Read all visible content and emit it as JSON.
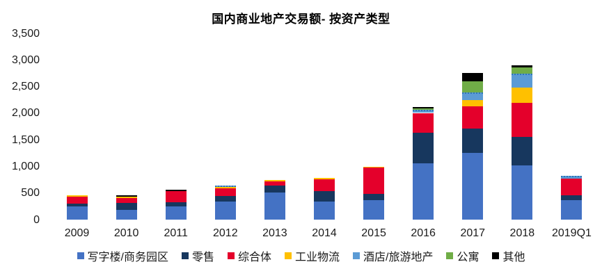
{
  "title": "国内商业地产交易额- 按资产类型",
  "chart_data": {
    "type": "bar",
    "stacked": true,
    "title": "国内商业地产交易额- 按资产类型",
    "grid": false,
    "legend_position": "bottom",
    "xlabel": "",
    "ylabel": "",
    "ylim": [
      0,
      3500
    ],
    "categories": [
      "2009",
      "2010",
      "2011",
      "2012",
      "2013",
      "2014",
      "2015",
      "2016",
      "2017",
      "2018",
      "2019Q1"
    ],
    "series": [
      {
        "key": "office-business-park",
        "name": "写字楼/商务园区",
        "color": "#4472C4",
        "values": [
          250,
          185,
          250,
          340,
          505,
          345,
          370,
          1055,
          1250,
          1020,
          360
        ]
      },
      {
        "key": "retail",
        "name": "零售",
        "color": "#17375E",
        "values": [
          55,
          130,
          75,
          105,
          135,
          185,
          110,
          575,
          465,
          535,
          95
        ]
      },
      {
        "key": "mixed-use",
        "name": "综合体",
        "color": "#E4002B",
        "values": [
          125,
          90,
          210,
          145,
          85,
          230,
          495,
          375,
          415,
          640,
          315
        ]
      },
      {
        "key": "industrial-logistics",
        "name": "工业物流",
        "color": "#FFC000",
        "values": [
          25,
          25,
          0,
          25,
          25,
          20,
          20,
          0,
          120,
          285,
          0
        ]
      },
      {
        "key": "hotel-tourism",
        "name": "酒店/旅游地产",
        "color": "#5B9BD5",
        "top_border": "dotted",
        "values": [
          0,
          0,
          0,
          25,
          0,
          0,
          0,
          65,
          145,
          265,
          55
        ]
      },
      {
        "key": "apartment",
        "name": "公寓",
        "color": "#70AD47",
        "values": [
          0,
          0,
          0,
          0,
          0,
          0,
          0,
          15,
          205,
          115,
          0
        ]
      },
      {
        "key": "other",
        "name": "其他",
        "color": "#000000",
        "values": [
          0,
          25,
          25,
          0,
          0,
          0,
          0,
          25,
          155,
          35,
          0
        ]
      }
    ],
    "totals": [
      455,
      455,
      560,
      640,
      750,
      780,
      995,
      2110,
      2755,
      2895,
      825
    ],
    "yticks": [
      {
        "value": 0,
        "label": "0"
      },
      {
        "value": 500,
        "label": "500"
      },
      {
        "value": 1000,
        "label": "1,000"
      },
      {
        "value": 1500,
        "label": "1,500"
      },
      {
        "value": 2000,
        "label": "2,000"
      },
      {
        "value": 2500,
        "label": "2,500"
      },
      {
        "value": 3000,
        "label": "3,000"
      },
      {
        "value": 3500,
        "label": "3,500"
      }
    ]
  }
}
